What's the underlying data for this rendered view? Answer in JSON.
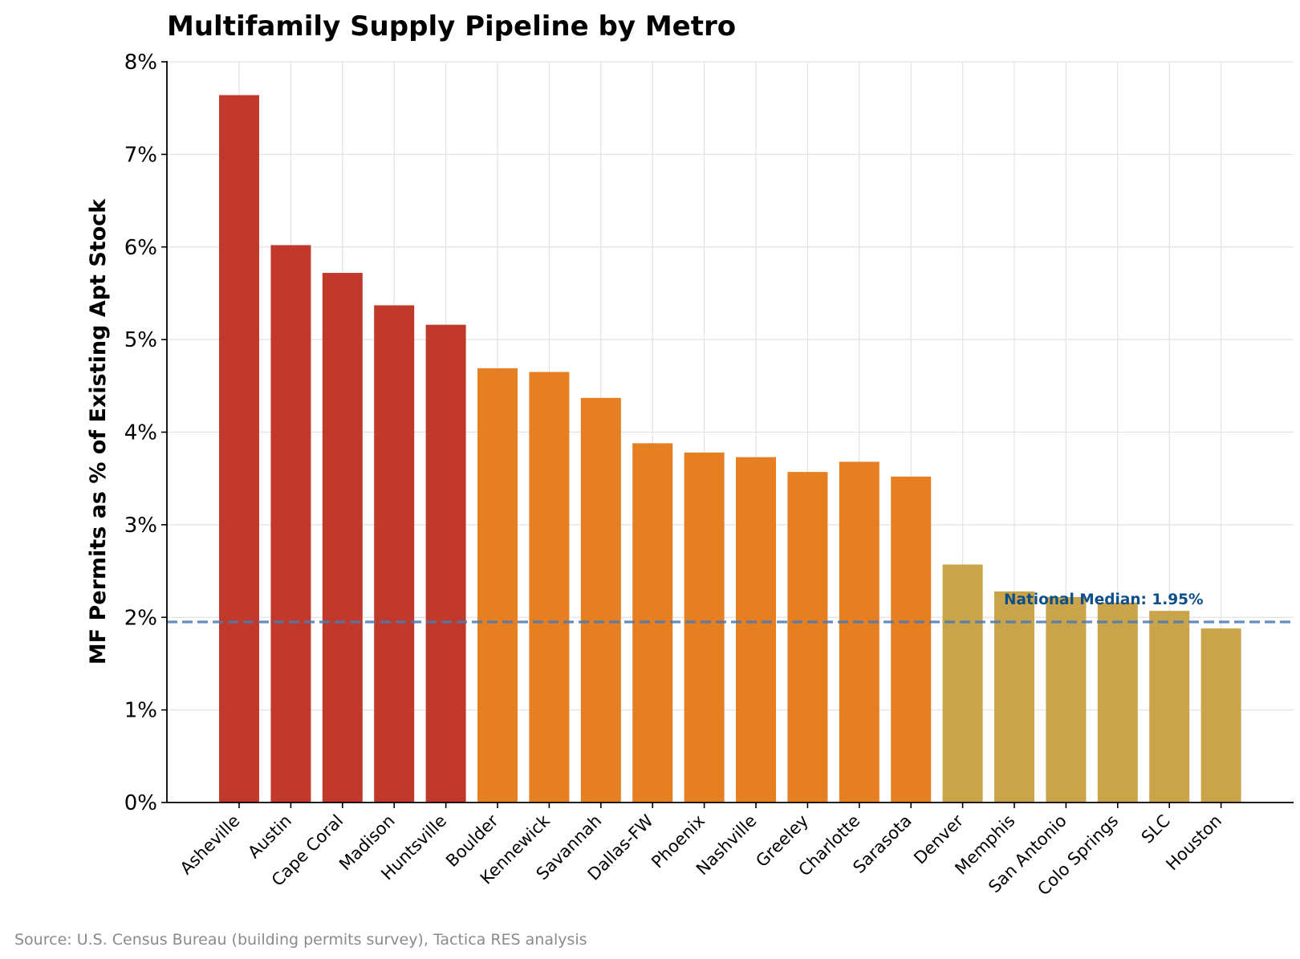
{
  "chart_data": {
    "type": "bar",
    "title": "Multifamily Supply Pipeline by Metro",
    "xlabel": "",
    "ylabel": "MF Permits as % of Existing Apt Stock",
    "ylim": [
      0,
      8
    ],
    "yticks": [
      "0%",
      "1%",
      "2%",
      "3%",
      "4%",
      "5%",
      "6%",
      "7%",
      "8%"
    ],
    "grid": true,
    "categories": [
      "Asheville",
      "Austin",
      "Cape Coral",
      "Madison",
      "Huntsville",
      "Boulder",
      "Kennewick",
      "Savannah",
      "Dallas-FW",
      "Phoenix",
      "Nashville",
      "Greeley",
      "Charlotte",
      "Sarasota",
      "Denver",
      "Memphis",
      "San Antonio",
      "Colo Springs",
      "SLC",
      "Houston"
    ],
    "values": [
      7.64,
      6.02,
      5.72,
      5.37,
      5.16,
      4.69,
      4.65,
      4.37,
      3.88,
      3.78,
      3.73,
      3.57,
      3.68,
      3.52,
      2.57,
      2.28,
      2.22,
      2.16,
      2.07,
      1.88
    ],
    "bar_colors": [
      "#c0392b",
      "#c0392b",
      "#c0392b",
      "#c0392b",
      "#c0392b",
      "#e67e22",
      "#e67e22",
      "#e67e22",
      "#e67e22",
      "#e67e22",
      "#e67e22",
      "#e67e22",
      "#e67e22",
      "#e67e22",
      "#c9a44a",
      "#c9a44a",
      "#c9a44a",
      "#c9a44a",
      "#c9a44a",
      "#c9a44a"
    ],
    "reference_line": {
      "value": 1.95,
      "label": "National Median: 1.95%",
      "color": "#4a7ab5",
      "label_color": "#0d4f8b",
      "style": "dashed"
    },
    "source": "Source: U.S. Census Bureau (building permits survey), Tactica RES analysis"
  }
}
